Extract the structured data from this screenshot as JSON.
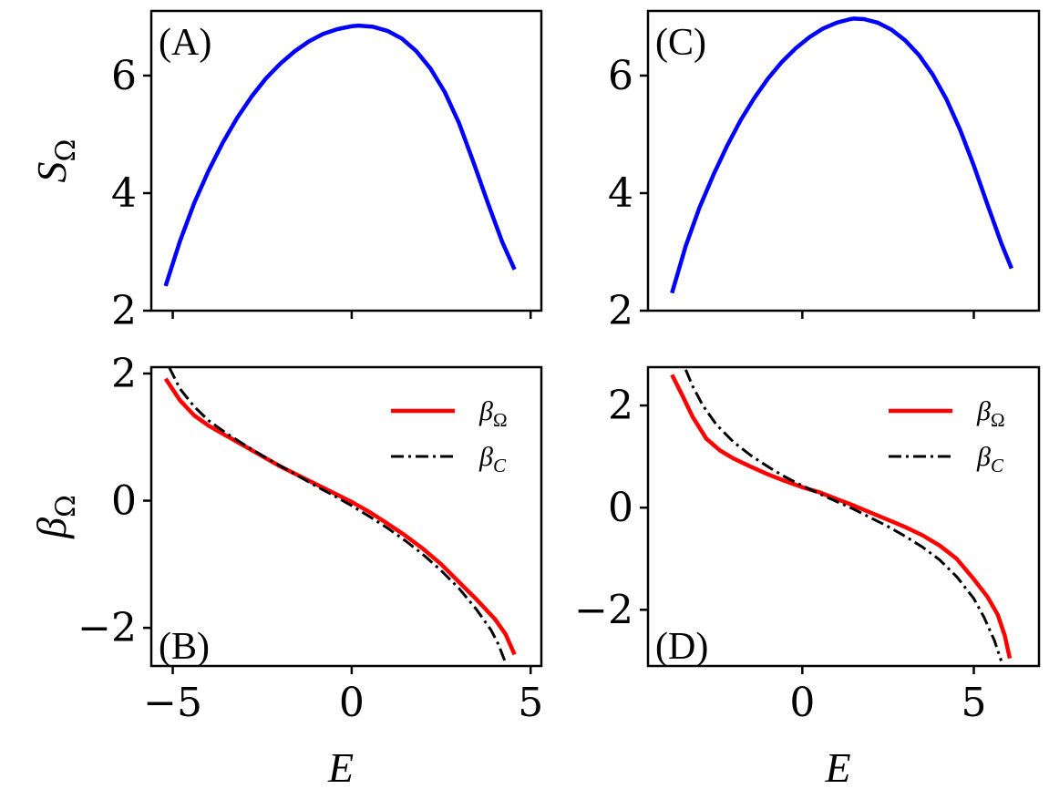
{
  "chart_data": [
    {
      "panel": "(A)",
      "type": "line",
      "ylabel": "S",
      "ylabel_sub": "Ω",
      "xlim": [
        -5.6,
        5.3
      ],
      "ylim": [
        2,
        7.1
      ],
      "xticks": [
        -5,
        0,
        5
      ],
      "show_xtick_labels": false,
      "yticks": [
        2,
        4,
        6
      ],
      "ytick_labels": [
        "2",
        "4",
        "6"
      ],
      "series": [
        {
          "color": "#0000ff",
          "style": "solid",
          "x": [
            -5.2,
            -4.8,
            -4.4,
            -4.0,
            -3.6,
            -3.2,
            -2.8,
            -2.4,
            -2.0,
            -1.6,
            -1.2,
            -0.8,
            -0.4,
            0.0,
            0.2,
            0.6,
            1.0,
            1.4,
            1.8,
            2.2,
            2.6,
            3.0,
            3.4,
            3.8,
            4.2,
            4.55
          ],
          "y": [
            2.42,
            3.18,
            3.83,
            4.38,
            4.86,
            5.28,
            5.64,
            5.95,
            6.2,
            6.41,
            6.58,
            6.71,
            6.79,
            6.84,
            6.85,
            6.83,
            6.76,
            6.63,
            6.42,
            6.12,
            5.72,
            5.19,
            4.53,
            3.84,
            3.18,
            2.7
          ]
        }
      ]
    },
    {
      "panel": "(B)",
      "type": "line",
      "xlabel": "E",
      "ylabel": "β",
      "ylabel_sub": "Ω",
      "xlim": [
        -5.6,
        5.3
      ],
      "ylim": [
        -2.6,
        2.1
      ],
      "xticks": [
        -5,
        0,
        5
      ],
      "xtick_labels": [
        "−5",
        "0",
        "5"
      ],
      "yticks": [
        -2,
        0,
        2
      ],
      "ytick_labels": [
        "−2",
        "0",
        "2"
      ],
      "legend": {
        "position": "top-right",
        "entries": [
          {
            "symbol": "β",
            "sub": "Ω",
            "color": "#ff0000",
            "style": "solid"
          },
          {
            "symbol": "β",
            "sub": "C",
            "color": "#000000",
            "style": "dashdot"
          }
        ]
      },
      "series": [
        {
          "legend_symbol": "β",
          "legend_sub": "Ω",
          "color": "#ff0000",
          "style": "solid",
          "x": [
            -5.2,
            -4.8,
            -4.4,
            -4.0,
            -3.5,
            -3.0,
            -2.5,
            -2.0,
            -1.5,
            -1.0,
            -0.5,
            0.0,
            0.5,
            1.0,
            1.5,
            2.0,
            2.5,
            3.0,
            3.5,
            4.0,
            4.3,
            4.55
          ],
          "y": [
            1.92,
            1.58,
            1.34,
            1.18,
            1.02,
            0.86,
            0.7,
            0.54,
            0.4,
            0.26,
            0.12,
            -0.02,
            -0.18,
            -0.36,
            -0.55,
            -0.76,
            -1.0,
            -1.28,
            -1.56,
            -1.86,
            -2.1,
            -2.42
          ]
        },
        {
          "legend_symbol": "β",
          "legend_sub": "C",
          "color": "#000000",
          "style": "dashdot",
          "x": [
            -5.1,
            -4.8,
            -4.4,
            -4.0,
            -3.5,
            -3.0,
            -2.5,
            -2.0,
            -1.5,
            -1.0,
            -0.5,
            0.0,
            0.5,
            1.0,
            1.5,
            2.0,
            2.5,
            3.0,
            3.5,
            3.9,
            4.1,
            4.3
          ],
          "y": [
            2.1,
            1.76,
            1.48,
            1.26,
            1.06,
            0.88,
            0.71,
            0.55,
            0.39,
            0.23,
            0.08,
            -0.08,
            -0.25,
            -0.43,
            -0.63,
            -0.85,
            -1.1,
            -1.38,
            -1.72,
            -2.04,
            -2.26,
            -2.55
          ]
        }
      ]
    },
    {
      "panel": "(C)",
      "type": "line",
      "xlim": [
        -4.5,
        6.9
      ],
      "ylim": [
        2,
        7.1
      ],
      "xticks": [
        0,
        5
      ],
      "show_xtick_labels": false,
      "yticks": [
        2,
        4,
        6
      ],
      "ytick_labels": [
        "2",
        "4",
        "6"
      ],
      "series": [
        {
          "color": "#0000ff",
          "style": "solid",
          "x": [
            -3.8,
            -3.4,
            -3.0,
            -2.6,
            -2.2,
            -1.8,
            -1.4,
            -1.0,
            -0.6,
            -0.2,
            0.2,
            0.6,
            1.0,
            1.4,
            1.5,
            1.8,
            2.2,
            2.6,
            3.0,
            3.4,
            3.8,
            4.2,
            4.6,
            5.0,
            5.4,
            5.8,
            6.1
          ],
          "y": [
            2.3,
            3.1,
            3.75,
            4.3,
            4.8,
            5.24,
            5.62,
            5.95,
            6.23,
            6.46,
            6.65,
            6.8,
            6.9,
            6.96,
            6.97,
            6.96,
            6.9,
            6.78,
            6.6,
            6.35,
            6.02,
            5.6,
            5.08,
            4.47,
            3.8,
            3.15,
            2.72
          ]
        }
      ]
    },
    {
      "panel": "(D)",
      "type": "line",
      "xlabel": "E",
      "xlim": [
        -4.5,
        6.9
      ],
      "ylim": [
        -3.1,
        2.75
      ],
      "xticks": [
        0,
        5
      ],
      "xtick_labels": [
        "0",
        "5"
      ],
      "yticks": [
        -2,
        0,
        2
      ],
      "ytick_labels": [
        "−2",
        "0",
        "2"
      ],
      "legend": {
        "position": "top-right",
        "entries": [
          {
            "symbol": "β",
            "sub": "Ω",
            "color": "#ff0000",
            "style": "solid"
          },
          {
            "symbol": "β",
            "sub": "C",
            "color": "#000000",
            "style": "dashdot"
          }
        ]
      },
      "series": [
        {
          "legend_symbol": "β",
          "legend_sub": "Ω",
          "color": "#ff0000",
          "style": "solid",
          "x": [
            -3.8,
            -3.5,
            -3.2,
            -2.8,
            -2.4,
            -2.0,
            -1.5,
            -1.0,
            -0.5,
            0.0,
            0.5,
            1.0,
            1.5,
            2.0,
            2.5,
            3.0,
            3.5,
            4.0,
            4.5,
            5.0,
            5.4,
            5.7,
            5.9,
            6.05
          ],
          "y": [
            2.6,
            2.2,
            1.78,
            1.35,
            1.12,
            0.96,
            0.8,
            0.65,
            0.52,
            0.4,
            0.3,
            0.17,
            0.04,
            -0.1,
            -0.24,
            -0.38,
            -0.54,
            -0.74,
            -1.0,
            -1.4,
            -1.75,
            -2.1,
            -2.5,
            -2.95
          ]
        },
        {
          "legend_symbol": "β",
          "legend_sub": "C",
          "color": "#000000",
          "style": "dashdot",
          "x": [
            -3.4,
            -3.2,
            -2.9,
            -2.5,
            -2.0,
            -1.5,
            -1.0,
            -0.5,
            0.0,
            0.5,
            1.0,
            1.5,
            2.0,
            2.5,
            3.0,
            3.5,
            4.0,
            4.5,
            5.0,
            5.3,
            5.6,
            5.8
          ],
          "y": [
            2.7,
            2.38,
            2.0,
            1.62,
            1.28,
            1.02,
            0.8,
            0.6,
            0.43,
            0.27,
            0.12,
            -0.03,
            -0.2,
            -0.37,
            -0.56,
            -0.77,
            -1.02,
            -1.35,
            -1.78,
            -2.15,
            -2.6,
            -3.0
          ]
        }
      ]
    }
  ]
}
